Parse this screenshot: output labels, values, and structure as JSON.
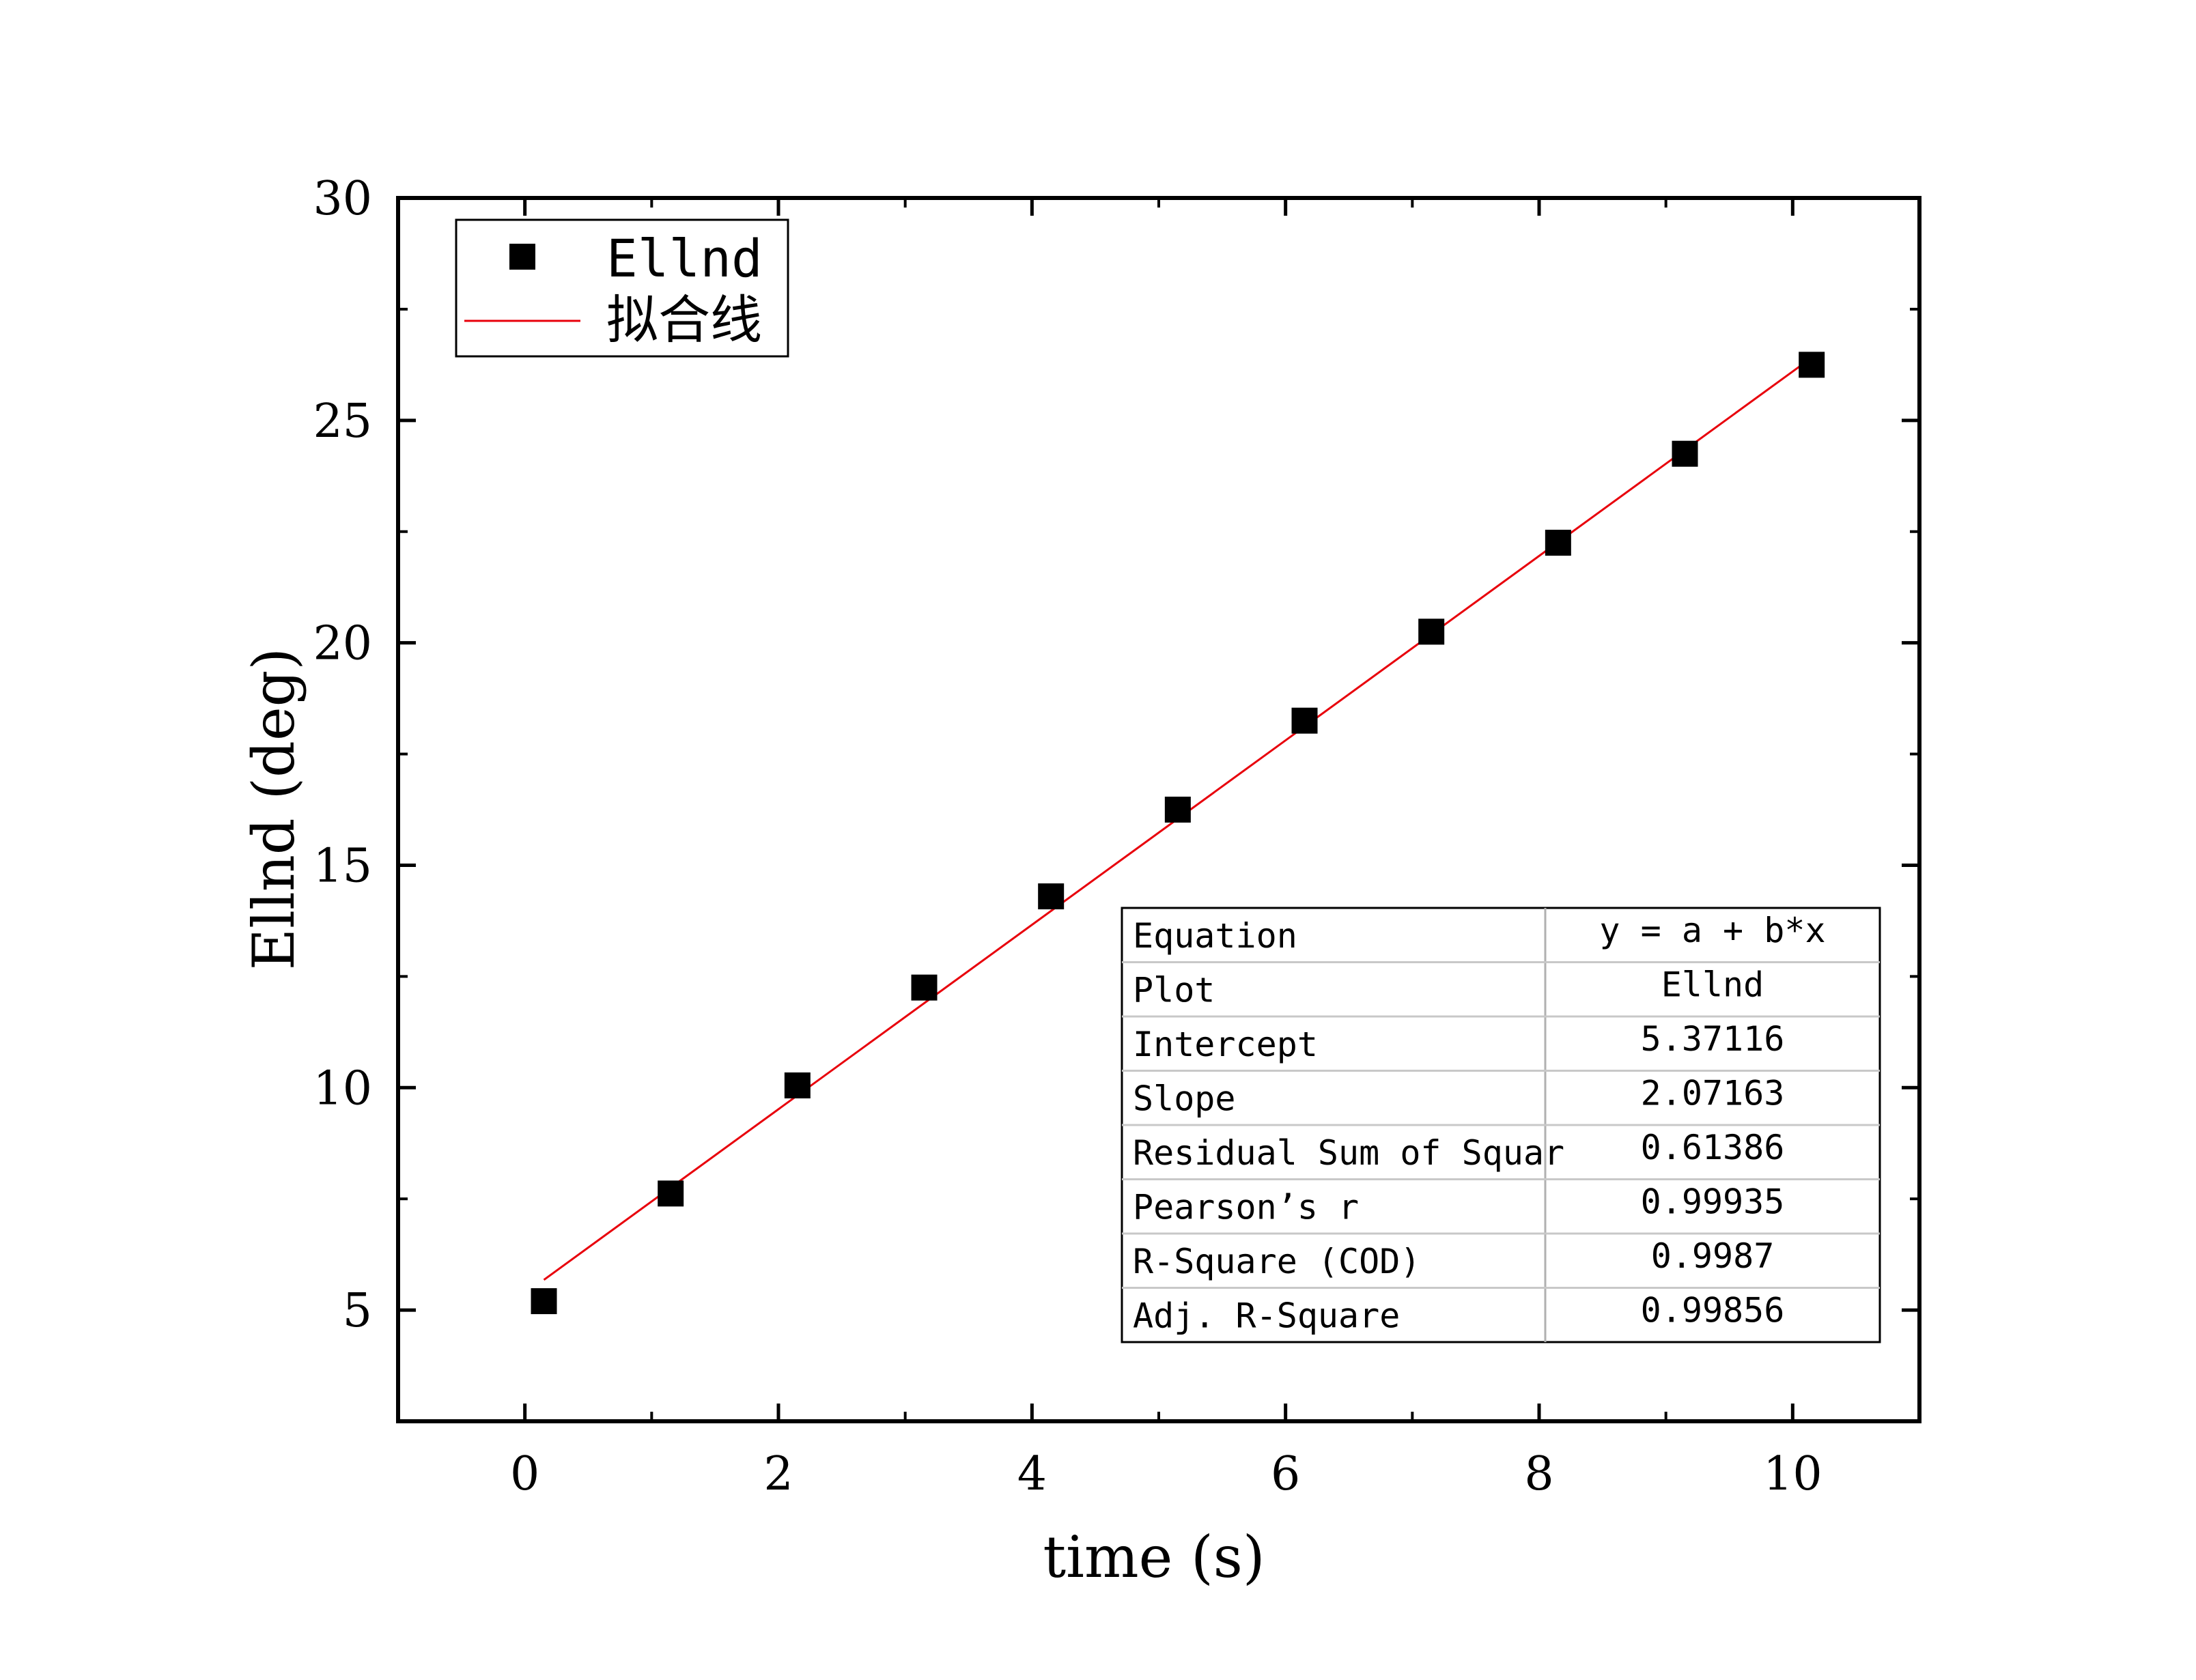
{
  "chart_data": {
    "type": "scatter",
    "xlabel": "time (s)",
    "ylabel": "Ellnd (deg)",
    "xlim": [
      -1,
      11
    ],
    "ylim": [
      2.5,
      30
    ],
    "x_ticks": [
      "0",
      "2",
      "4",
      "6",
      "8",
      "10"
    ],
    "y_ticks": [
      "5",
      "10",
      "15",
      "20",
      "25",
      "30"
    ],
    "series": [
      {
        "name": "Ellnd",
        "marker": "square",
        "color": "#000000",
        "x": [
          0.15,
          1.15,
          2.15,
          3.15,
          4.15,
          5.15,
          6.15,
          7.15,
          8.15,
          9.15,
          10.15
        ],
        "y": [
          5.2,
          7.62,
          10.05,
          12.25,
          14.3,
          16.25,
          18.25,
          20.25,
          22.25,
          24.25,
          26.25
        ]
      },
      {
        "name": "拟合线",
        "kind": "fit-line",
        "color": "#e8000b",
        "x": [
          0.15,
          10.15
        ],
        "y": [
          5.68,
          26.41
        ]
      }
    ],
    "legend": {
      "position": "top-left",
      "entries": [
        "Ellnd",
        "拟合线"
      ]
    },
    "fit_table": {
      "position": "bottom-right",
      "rows": [
        {
          "label": "Equation",
          "value": "y = a + b*x"
        },
        {
          "label": "Plot",
          "value": "Ellnd"
        },
        {
          "label": "Intercept",
          "value": "5.37116"
        },
        {
          "label": "Slope",
          "value": "2.07163"
        },
        {
          "label": "Residual Sum of Squar",
          "value": "0.61386"
        },
        {
          "label": "Pearson’s r",
          "value": "0.99935"
        },
        {
          "label": "R-Square (COD)",
          "value": "0.9987"
        },
        {
          "label": "Adj. R-Square",
          "value": "0.99856"
        }
      ]
    }
  }
}
